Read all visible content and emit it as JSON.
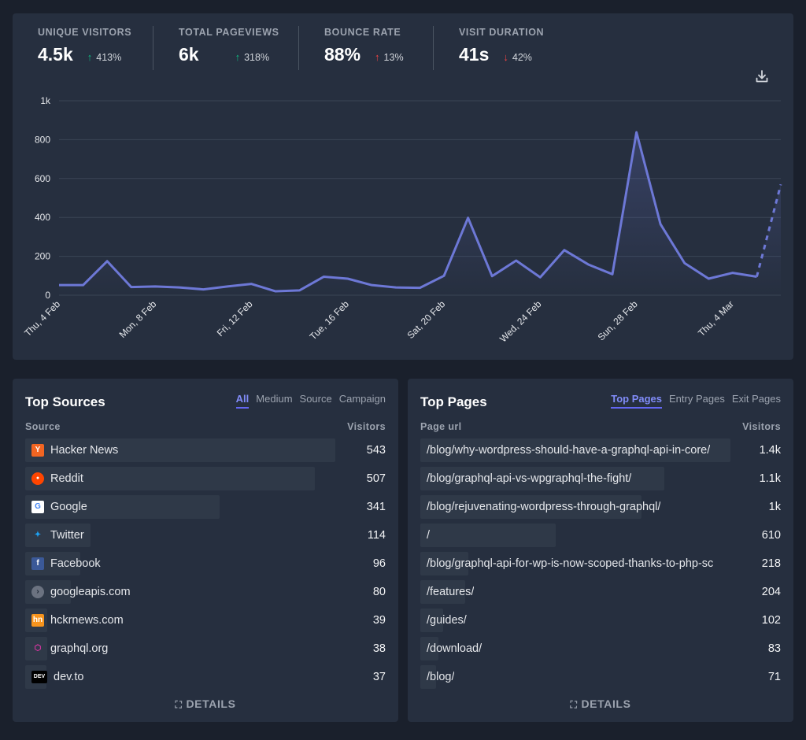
{
  "stats": [
    {
      "label": "UNIQUE VISITORS",
      "value": "4.5k",
      "change": "413%",
      "direction": "up",
      "color": "#10b981"
    },
    {
      "label": "TOTAL PAGEVIEWS",
      "value": "6k",
      "change": "318%",
      "direction": "up",
      "color": "#10b981"
    },
    {
      "label": "BOUNCE RATE",
      "value": "88%",
      "change": "13%",
      "direction": "up",
      "color": "#ef4444"
    },
    {
      "label": "VISIT DURATION",
      "value": "41s",
      "change": "42%",
      "direction": "down",
      "color": "#ef4444"
    }
  ],
  "chart_data": {
    "type": "line",
    "y_ticks": [
      "0",
      "200",
      "400",
      "600",
      "800",
      "1k"
    ],
    "ylim": [
      0,
      1000
    ],
    "x_tick_labels": [
      "Thu, 4 Feb",
      "Mon, 8 Feb",
      "Fri, 12 Feb",
      "Tue, 16 Feb",
      "Sat, 20 Feb",
      "Wed, 24 Feb",
      "Sun, 28 Feb",
      "Thu, 4 Mar"
    ],
    "x_tick_index": [
      0,
      4,
      8,
      12,
      16,
      20,
      24,
      28
    ],
    "series": [
      {
        "values": [
          52,
          52,
          175,
          42,
          45,
          40,
          30,
          45,
          58,
          20,
          25,
          95,
          85,
          52,
          40,
          38,
          100,
          398,
          98,
          178,
          92,
          232,
          158,
          108,
          838,
          365,
          165,
          85,
          115,
          95,
          570
        ],
        "last_segment_dashed": true,
        "color": "#6d78d6"
      }
    ],
    "grid": true
  },
  "sources": {
    "title": "Top Sources",
    "tabs": [
      "All",
      "Medium",
      "Source",
      "Campaign"
    ],
    "active_tab": 0,
    "col_left": "Source",
    "col_right": "Visitors",
    "rows": [
      {
        "name": "Hacker News",
        "value": "543",
        "n": 543,
        "icon": "hacker-news-icon",
        "icon_text": "Y",
        "icon_bg": "#f26522",
        "icon_color": "#ffffff"
      },
      {
        "name": "Reddit",
        "value": "507",
        "n": 507,
        "icon": "reddit-icon",
        "icon_text": "●",
        "icon_bg": "#ff4500",
        "icon_color": "#ffffff"
      },
      {
        "name": "Google",
        "value": "341",
        "n": 341,
        "icon": "google-icon",
        "icon_text": "G",
        "icon_bg": "#ffffff",
        "icon_color": "#4285f4"
      },
      {
        "name": "Twitter",
        "value": "114",
        "n": 114,
        "icon": "twitter-icon",
        "icon_text": "✦",
        "icon_bg": "transparent",
        "icon_color": "#1da1f2"
      },
      {
        "name": "Facebook",
        "value": "96",
        "n": 96,
        "icon": "facebook-icon",
        "icon_text": "f",
        "icon_bg": "#3b5998",
        "icon_color": "#ffffff"
      },
      {
        "name": "googleapis.com",
        "value": "80",
        "n": 80,
        "icon": "globe-icon",
        "icon_text": "›",
        "icon_bg": "#6b7280",
        "icon_color": "#1f2937"
      },
      {
        "name": "hckrnews.com",
        "value": "39",
        "n": 39,
        "icon": "hckrnews-icon",
        "icon_text": "hn",
        "icon_bg": "#f7941d",
        "icon_color": "#ffffff"
      },
      {
        "name": "graphql.org",
        "value": "38",
        "n": 38,
        "icon": "graphql-icon",
        "icon_text": "⬡",
        "icon_bg": "transparent",
        "icon_color": "#e535ab"
      },
      {
        "name": "dev.to",
        "value": "37",
        "n": 37,
        "icon": "devto-icon",
        "icon_text": "DEV",
        "icon_bg": "#000000",
        "icon_color": "#ffffff"
      }
    ],
    "details_label": "DETAILS"
  },
  "pages": {
    "title": "Top Pages",
    "tabs": [
      "Top Pages",
      "Entry Pages",
      "Exit Pages"
    ],
    "active_tab": 0,
    "col_left": "Page url",
    "col_right": "Visitors",
    "rows": [
      {
        "name": "/blog/why-wordpress-should-have-a-graphql-api-in-core/",
        "value": "1.4k",
        "n": 1400
      },
      {
        "name": "/blog/graphql-api-vs-wpgraphql-the-fight/",
        "value": "1.1k",
        "n": 1100
      },
      {
        "name": "/blog/rejuvenating-wordpress-through-graphql/",
        "value": "1k",
        "n": 1000
      },
      {
        "name": "/",
        "value": "610",
        "n": 610
      },
      {
        "name": "/blog/graphql-api-for-wp-is-now-scoped-thanks-to-php-sc",
        "value": "218",
        "n": 218
      },
      {
        "name": "/features/",
        "value": "204",
        "n": 204
      },
      {
        "name": "/guides/",
        "value": "102",
        "n": 102
      },
      {
        "name": "/download/",
        "value": "83",
        "n": 83
      },
      {
        "name": "/blog/",
        "value": "71",
        "n": 71
      }
    ],
    "details_label": "DETAILS"
  }
}
